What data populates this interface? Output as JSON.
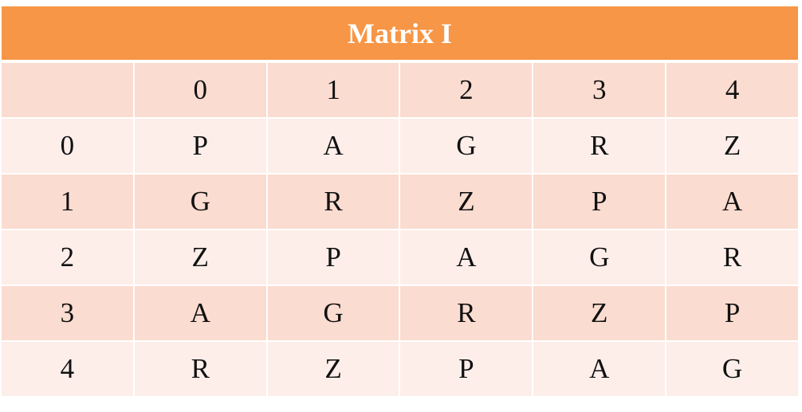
{
  "title": "Matrix I",
  "table": {
    "columns": [
      "0",
      "1",
      "2",
      "3",
      "4"
    ],
    "rows": [
      {
        "label": "0",
        "cells": [
          "P",
          "A",
          "G",
          "R",
          "Z"
        ]
      },
      {
        "label": "1",
        "cells": [
          "G",
          "R",
          "Z",
          "P",
          "A"
        ]
      },
      {
        "label": "2",
        "cells": [
          "Z",
          "P",
          "A",
          "G",
          "R"
        ]
      },
      {
        "label": "3",
        "cells": [
          "A",
          "G",
          "R",
          "Z",
          "P"
        ]
      },
      {
        "label": "4",
        "cells": [
          "R",
          "Z",
          "P",
          "A",
          "G"
        ]
      }
    ]
  }
}
